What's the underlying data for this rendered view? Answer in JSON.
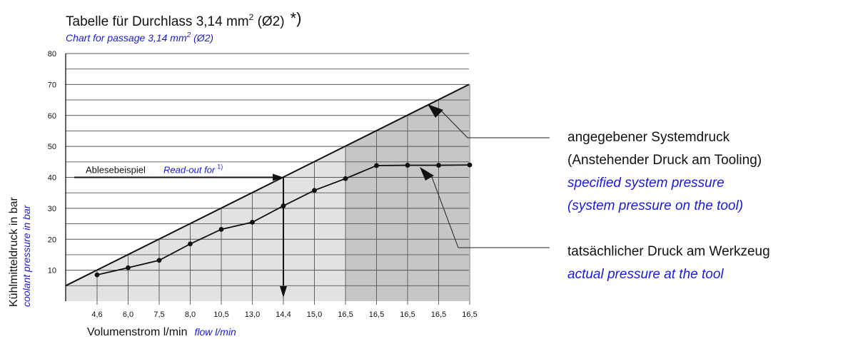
{
  "chart_data": {
    "type": "line",
    "title": "Tabelle für Durchlass 3,14 mm",
    "title_sup": "2",
    "title_tail": " (Ø2)",
    "title_note": "*)",
    "subtitle": "Chart for passage 3,14 mm",
    "subtitle_sup": "2",
    "subtitle_tail": " (Ø2)",
    "xlabel": "Volumenstrom  l/min",
    "xlabel_en": "flow  l/min",
    "ylabel": "Kühlmitteldruck in bar",
    "ylabel_en": "coolant pressure in bar",
    "ylim": [
      0,
      80
    ],
    "yticks": [
      "10",
      "20",
      "30",
      "40",
      "50",
      "60",
      "70",
      "80"
    ],
    "categories": [
      "4,6",
      "6,0",
      "7,5",
      "8,0",
      "10,5",
      "13,0",
      "14,4",
      "15,0",
      "16,5",
      "16,5",
      "16,5",
      "16,5",
      "16,5"
    ],
    "grid": true,
    "series": [
      {
        "name": "angegebener Systemdruck",
        "kind": "system",
        "line_from": 5,
        "line_to": 70
      },
      {
        "name": "tatsächlicher Druck am Werkzeug",
        "kind": "actual",
        "values": [
          8.5,
          10.8,
          13.2,
          18.5,
          23.2,
          25.5,
          30.8,
          35.8,
          39.6,
          43.8,
          43.9,
          43.9,
          44.0
        ]
      }
    ],
    "readout": {
      "label": "Ablesebeispiel",
      "label_en": "Read-out for",
      "label_sup": "1)",
      "pressure": 40,
      "flow": "14,4"
    },
    "annotations": [
      {
        "id": "system",
        "lines": [
          "angegebener Systemdruck",
          "(Anstehender Druck am Tooling)"
        ],
        "lines_en": [
          "specified system pressure",
          "(system pressure on the tool)"
        ]
      },
      {
        "id": "actual",
        "lines": [
          "tatsächlicher Druck am Werkzeug"
        ],
        "lines_en": [
          "actual pressure at the tool"
        ]
      }
    ],
    "colors": {
      "text": "#111111",
      "english_text": "#1a1adf",
      "light_region": "#e2e2e2",
      "dark_region": "#c6c6c6",
      "grid": "#555555",
      "line": "#111111"
    }
  }
}
